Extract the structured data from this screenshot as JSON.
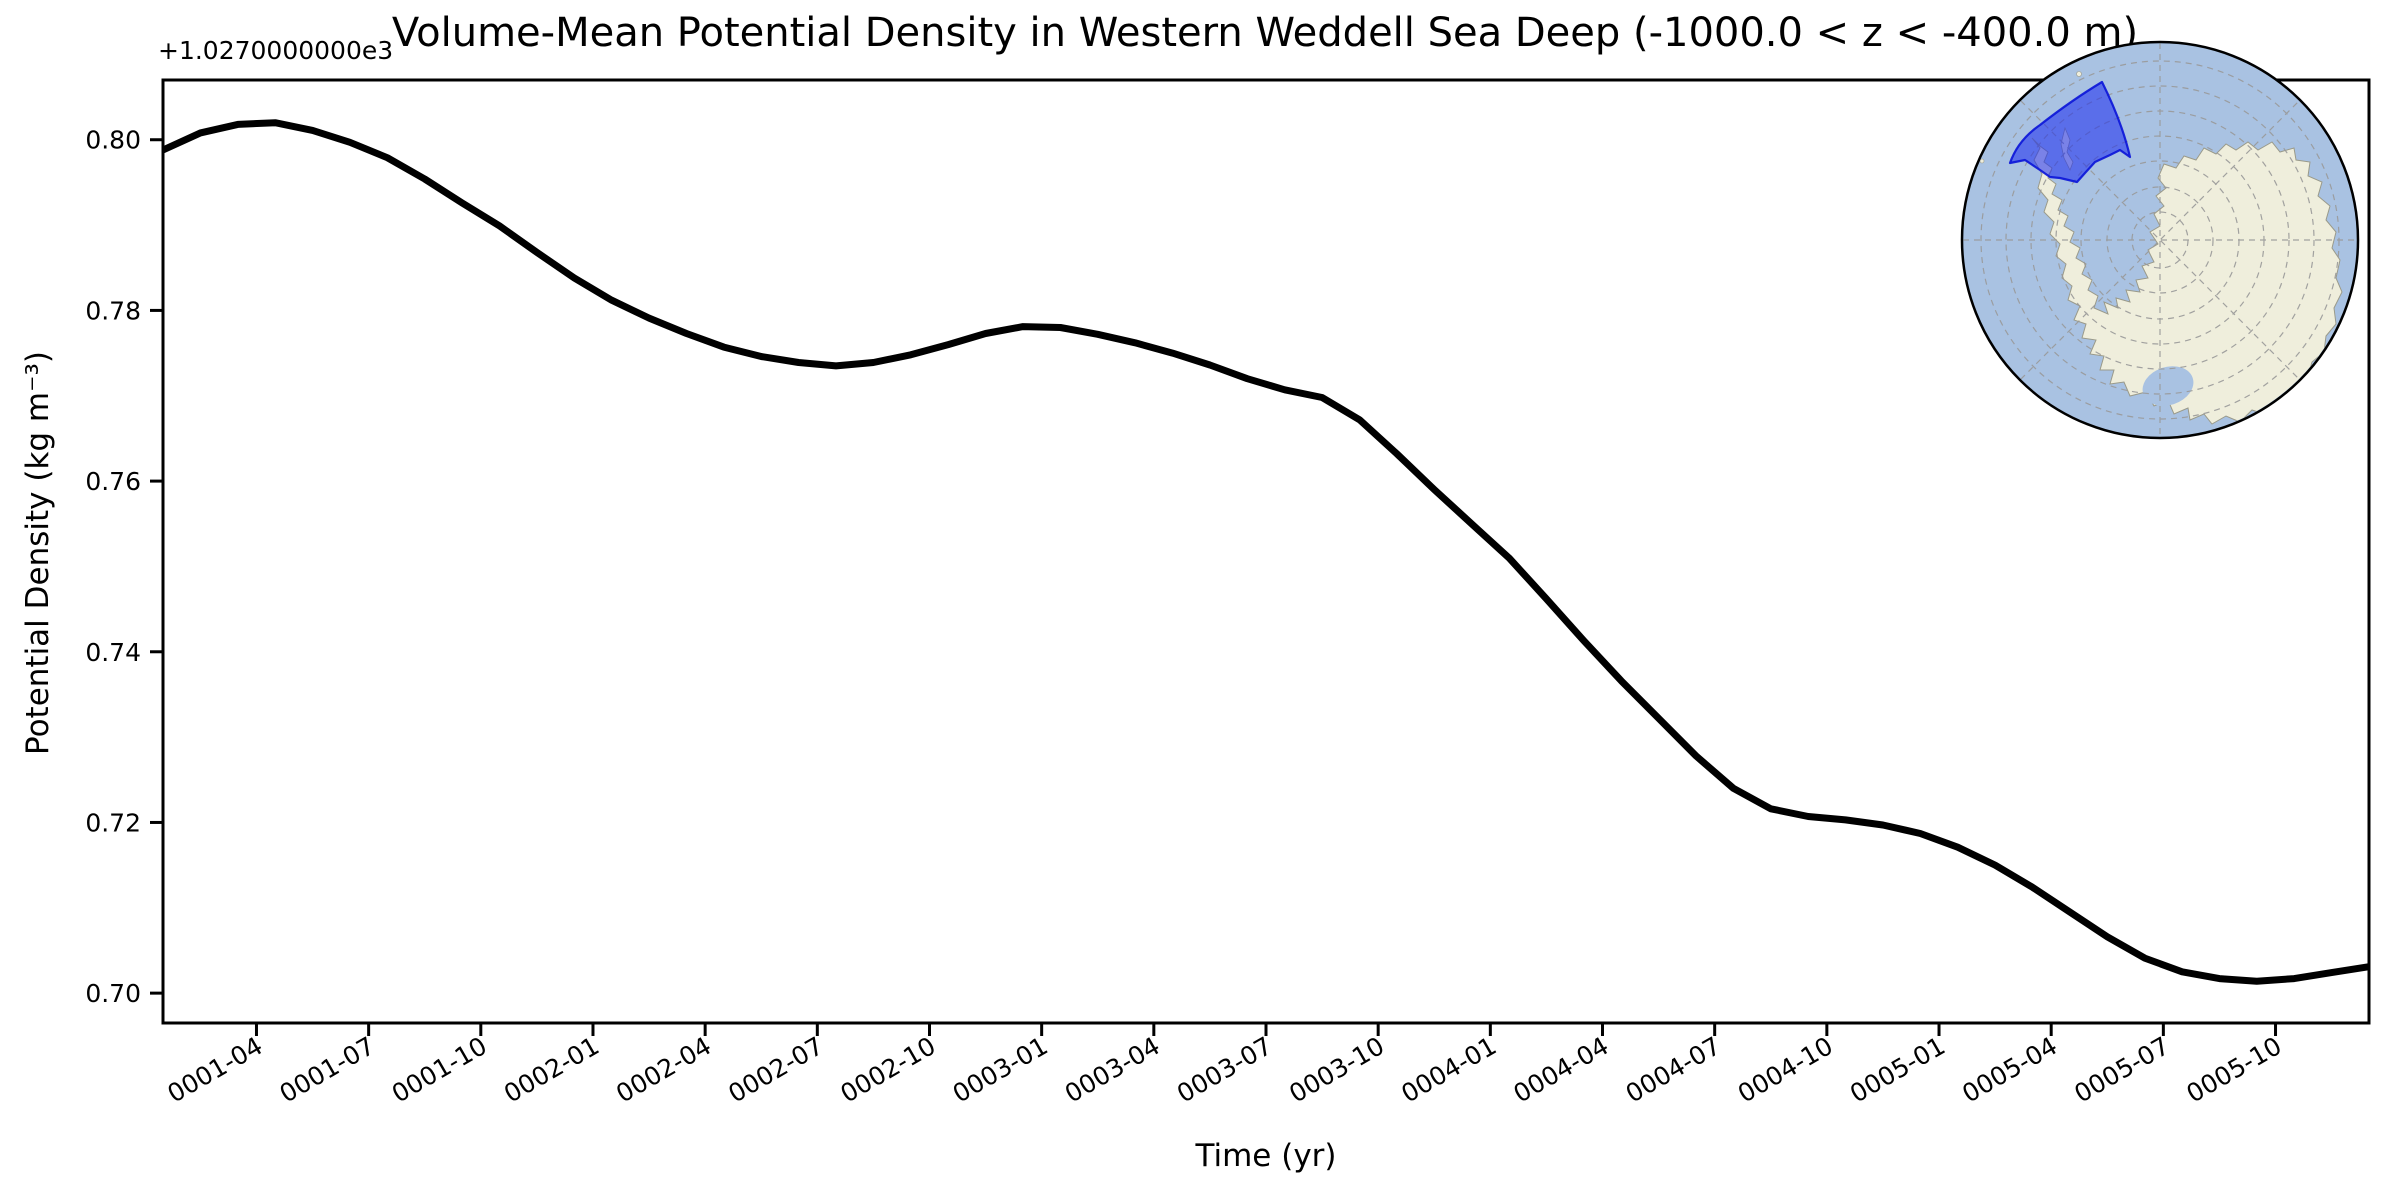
{
  "figure": {
    "title": "Volume-Mean Potential Density in Western Weddell Sea Deep (-1000.0 < z < -400.0 m)",
    "offset_text": "+1.0270000000e3",
    "xlabel": "Time (yr)",
    "ylabel": "Potential Density (kg m⁻³)"
  },
  "chart_data": {
    "type": "line",
    "title": "Volume-Mean Potential Density in Western Weddell Sea Deep (-1000.0 < z < -400.0 m)",
    "xlabel": "Time (yr)",
    "ylabel": "Potential Density (kg m-3)",
    "y_offset": 1027.0,
    "line_color": "#000000",
    "line_width": 7,
    "grid": false,
    "ylim": [
      0.6965,
      0.807
    ],
    "x": [
      "0001-01",
      "0001-02",
      "0001-03",
      "0001-04",
      "0001-05",
      "0001-06",
      "0001-07",
      "0001-08",
      "0001-09",
      "0001-10",
      "0001-11",
      "0001-12",
      "0002-01",
      "0002-02",
      "0002-03",
      "0002-04",
      "0002-05",
      "0002-06",
      "0002-07",
      "0002-08",
      "0002-09",
      "0002-10",
      "0002-11",
      "0002-12",
      "0003-01",
      "0003-02",
      "0003-03",
      "0003-04",
      "0003-05",
      "0003-06",
      "0003-07",
      "0003-08",
      "0003-09",
      "0003-10",
      "0003-11",
      "0003-12",
      "0004-01",
      "0004-02",
      "0004-03",
      "0004-04",
      "0004-05",
      "0004-06",
      "0004-07",
      "0004-08",
      "0004-09",
      "0004-10",
      "0004-11",
      "0004-12",
      "0005-01",
      "0005-02",
      "0005-03",
      "0005-04",
      "0005-05",
      "0005-06",
      "0005-07",
      "0005-08",
      "0005-09",
      "0005-10",
      "0005-11",
      "0005-12"
    ],
    "values": [
      0.7988,
      0.8008,
      0.8018,
      0.802,
      0.8011,
      0.7997,
      0.7979,
      0.7954,
      0.7926,
      0.7899,
      0.7868,
      0.7838,
      0.7812,
      0.7791,
      0.7773,
      0.7757,
      0.7746,
      0.7739,
      0.7735,
      0.7739,
      0.7748,
      0.776,
      0.7773,
      0.7781,
      0.778,
      0.7772,
      0.7762,
      0.775,
      0.7736,
      0.772,
      0.7707,
      0.7698,
      0.7672,
      0.7632,
      0.759,
      0.755,
      0.751,
      0.7462,
      0.7413,
      0.7366,
      0.7322,
      0.7278,
      0.724,
      0.7216,
      0.7207,
      0.7203,
      0.7197,
      0.7187,
      0.7171,
      0.715,
      0.7124,
      0.7095,
      0.7066,
      0.7041,
      0.7025,
      0.7017,
      0.7014,
      0.7017,
      0.7024,
      0.7031
    ],
    "xticks": [
      "0001-04",
      "0001-07",
      "0001-10",
      "0002-01",
      "0002-04",
      "0002-07",
      "0002-10",
      "0003-01",
      "0003-04",
      "0003-07",
      "0003-10",
      "0004-01",
      "0004-04",
      "0004-07",
      "0004-10",
      "0005-01",
      "0005-04",
      "0005-07",
      "0005-10"
    ],
    "yticks": [
      "0.80",
      "0.78",
      "0.76",
      "0.74",
      "0.72",
      "0.70"
    ]
  },
  "inset_map": {
    "ocean_color": "#a9c2e2",
    "land_color": "#efeedc",
    "coast_color": "#9a9a8a",
    "graticule_color": "#999999",
    "region_fill": "#1a2af0",
    "region_stroke": "#0a14d8",
    "border_color": "#000000"
  }
}
